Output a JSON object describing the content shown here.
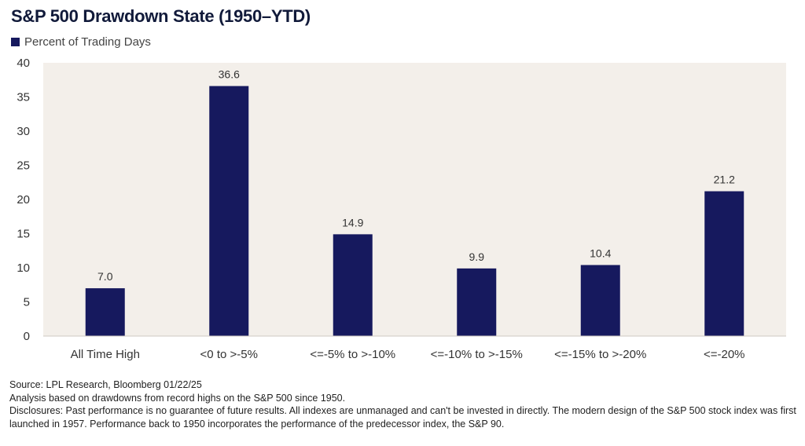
{
  "chart_data": {
    "type": "bar",
    "title": "S&P 500 Drawdown State (1950–YTD)",
    "series": [
      {
        "name": "Percent of Trading Days",
        "values": [
          7.0,
          36.6,
          14.9,
          9.9,
          10.4,
          21.2
        ]
      }
    ],
    "categories": [
      "All Time High",
      "<0 to >-5%",
      "<=-5% to >-10%",
      "<=-10% to >-15%",
      "<=-15% to >-20%",
      "<=-20%"
    ],
    "data_labels": [
      "7.0",
      "36.6",
      "14.9",
      "9.9",
      "10.4",
      "21.2"
    ],
    "ylim": [
      0,
      40
    ],
    "yticks": [
      "0",
      "5",
      "10",
      "15",
      "20",
      "25",
      "30",
      "35",
      "40"
    ],
    "ytick_values": [
      0,
      5,
      10,
      15,
      20,
      25,
      30,
      35,
      40
    ],
    "grid": false,
    "legend_position": "top-left",
    "colors": {
      "bar": "#16195e",
      "plot_background": "#f3efea"
    }
  },
  "footer": {
    "source": "Source: LPL Research, Bloomberg 01/22/25",
    "analysis": "Analysis based on drawdowns from record highs on the S&P 500 since 1950.",
    "disclosures": "Disclosures: Past performance is no guarantee of future results. All indexes are unmanaged and can't be invested in directly. The modern design of the S&P 500 stock index was first launched in 1957. Performance back to 1950 incorporates the performance of the predecessor index, the S&P 90."
  }
}
